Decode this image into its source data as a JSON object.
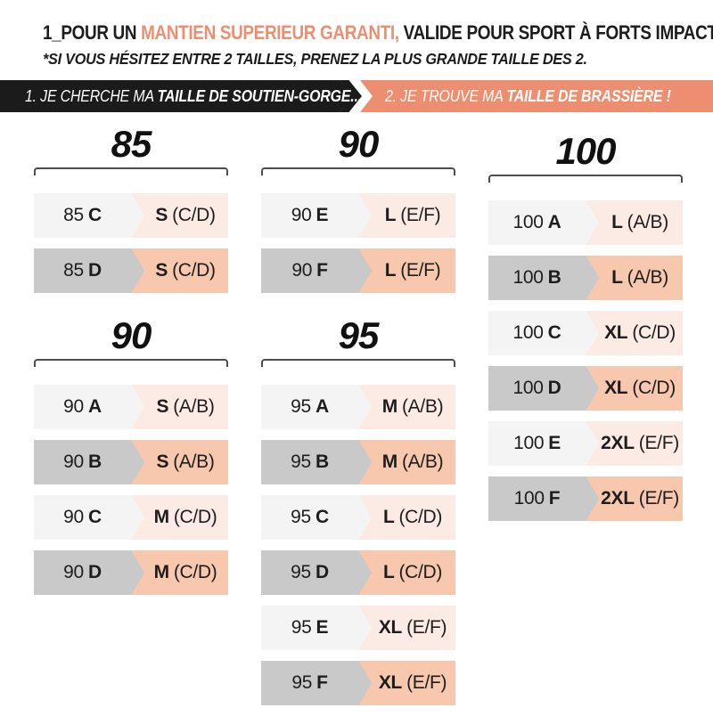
{
  "title": {
    "prefix": "1_POUR UN ",
    "highlight": "MANTIEN SUPERIEUR GARANTI, ",
    "suffix": "VALIDE POUR SPORT À FORTS IMPACTS"
  },
  "subtitle": "*SI VOUS HÉSITEZ ENTRE 2 TAILLES, PRENEZ LA PLUS GRANDE TAILLE DES 2.",
  "steps": [
    {
      "prefix": "1. JE CHERCHE MA ",
      "bold": "TAILLE DE SOUTIEN-GORGE..."
    },
    {
      "prefix": "2. JE TROUVE MA ",
      "bold": "TAILLE DE BRASSIÈRE !"
    }
  ],
  "colors": {
    "accent": "#ee8e70",
    "banner_bg": "#1b1b1b",
    "gray_light": "#f4f4f4",
    "gray_dark": "#c9c9c9",
    "peach_light": "#fcebe4",
    "peach_dark": "#f7c7ae",
    "bracket": "#4d4d4d",
    "text": "#1d1d1d"
  },
  "columns": [
    {
      "sections": [
        {
          "band_size": "85",
          "rows": [
            {
              "bra": "85",
              "cup": "C",
              "size": "S",
              "cups": "(C/D)",
              "shade": "light"
            },
            {
              "bra": "85",
              "cup": "D",
              "size": "S",
              "cups": "(C/D)",
              "shade": "dark"
            }
          ]
        },
        {
          "band_size": "90",
          "rows": [
            {
              "bra": "90",
              "cup": "A",
              "size": "S",
              "cups": "(A/B)",
              "shade": "light"
            },
            {
              "bra": "90",
              "cup": "B",
              "size": "S",
              "cups": "(A/B)",
              "shade": "dark"
            },
            {
              "bra": "90",
              "cup": "C",
              "size": "M",
              "cups": "(C/D)",
              "shade": "light"
            },
            {
              "bra": "90",
              "cup": "D",
              "size": "M",
              "cups": "(C/D)",
              "shade": "dark"
            }
          ]
        }
      ]
    },
    {
      "sections": [
        {
          "band_size": "90",
          "rows": [
            {
              "bra": "90",
              "cup": "E",
              "size": "L",
              "cups": "(E/F)",
              "shade": "light"
            },
            {
              "bra": "90",
              "cup": "F",
              "size": "L",
              "cups": "(E/F)",
              "shade": "dark"
            }
          ]
        },
        {
          "band_size": "95",
          "rows": [
            {
              "bra": "95",
              "cup": "A",
              "size": "M",
              "cups": "(A/B)",
              "shade": "light"
            },
            {
              "bra": "95",
              "cup": "B",
              "size": "M",
              "cups": "(A/B)",
              "shade": "dark"
            },
            {
              "bra": "95",
              "cup": "C",
              "size": "L",
              "cups": "(C/D)",
              "shade": "light"
            },
            {
              "bra": "95",
              "cup": "D",
              "size": "L",
              "cups": "(C/D)",
              "shade": "dark"
            },
            {
              "bra": "95",
              "cup": "E",
              "size": "XL",
              "cups": "(E/F)",
              "shade": "light"
            },
            {
              "bra": "95",
              "cup": "F",
              "size": "XL",
              "cups": "(E/F)",
              "shade": "dark"
            }
          ]
        }
      ]
    },
    {
      "sections": [
        {
          "band_size": "100",
          "rows": [
            {
              "bra": "100",
              "cup": "A",
              "size": "L",
              "cups": "(A/B)",
              "shade": "light"
            },
            {
              "bra": "100",
              "cup": "B",
              "size": "L",
              "cups": "(A/B)",
              "shade": "dark"
            },
            {
              "bra": "100",
              "cup": "C",
              "size": "XL",
              "cups": "(C/D)",
              "shade": "light"
            },
            {
              "bra": "100",
              "cup": "D",
              "size": "XL",
              "cups": "(C/D)",
              "shade": "dark"
            },
            {
              "bra": "100",
              "cup": "E",
              "size": "2XL",
              "cups": "(E/F)",
              "shade": "light"
            },
            {
              "bra": "100",
              "cup": "F",
              "size": "2XL",
              "cups": "(E/F)",
              "shade": "dark"
            }
          ]
        }
      ]
    }
  ],
  "chart_data": {
    "type": "table",
    "columns": [
      "TAILLE DE SOUTIEN-GORGE",
      "TAILLE DE BRASSIÈRE"
    ],
    "rows": [
      [
        "85 C",
        "S (C/D)"
      ],
      [
        "85 D",
        "S (C/D)"
      ],
      [
        "90 A",
        "S (A/B)"
      ],
      [
        "90 B",
        "S (A/B)"
      ],
      [
        "90 C",
        "M (C/D)"
      ],
      [
        "90 D",
        "M (C/D)"
      ],
      [
        "90 E",
        "L (E/F)"
      ],
      [
        "90 F",
        "L (E/F)"
      ],
      [
        "95 A",
        "M (A/B)"
      ],
      [
        "95 B",
        "M (A/B)"
      ],
      [
        "95 C",
        "L (C/D)"
      ],
      [
        "95 D",
        "L (C/D)"
      ],
      [
        "95 E",
        "XL (E/F)"
      ],
      [
        "95 F",
        "XL (E/F)"
      ],
      [
        "100 A",
        "L (A/B)"
      ],
      [
        "100 B",
        "L (A/B)"
      ],
      [
        "100 C",
        "XL (C/D)"
      ],
      [
        "100 D",
        "XL (C/D)"
      ],
      [
        "100 E",
        "2XL (E/F)"
      ],
      [
        "100 F",
        "2XL (E/F)"
      ]
    ]
  }
}
